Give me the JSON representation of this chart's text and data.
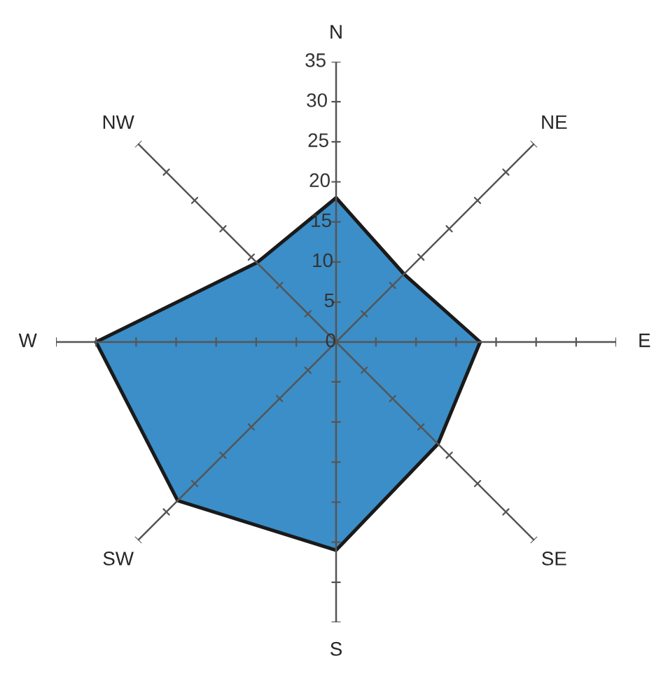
{
  "chart_data": {
    "type": "radar",
    "categories": [
      "N",
      "NE",
      "E",
      "SE",
      "S",
      "SW",
      "W",
      "NW"
    ],
    "series": [
      {
        "color": "#3b8ec8",
        "values": [
          18,
          12,
          18,
          18,
          26,
          28,
          30,
          14
        ]
      }
    ],
    "ylim": [
      0,
      35
    ],
    "yticks": [
      0,
      5,
      10,
      15,
      20,
      25,
      30,
      35
    ],
    "grid": false
  }
}
